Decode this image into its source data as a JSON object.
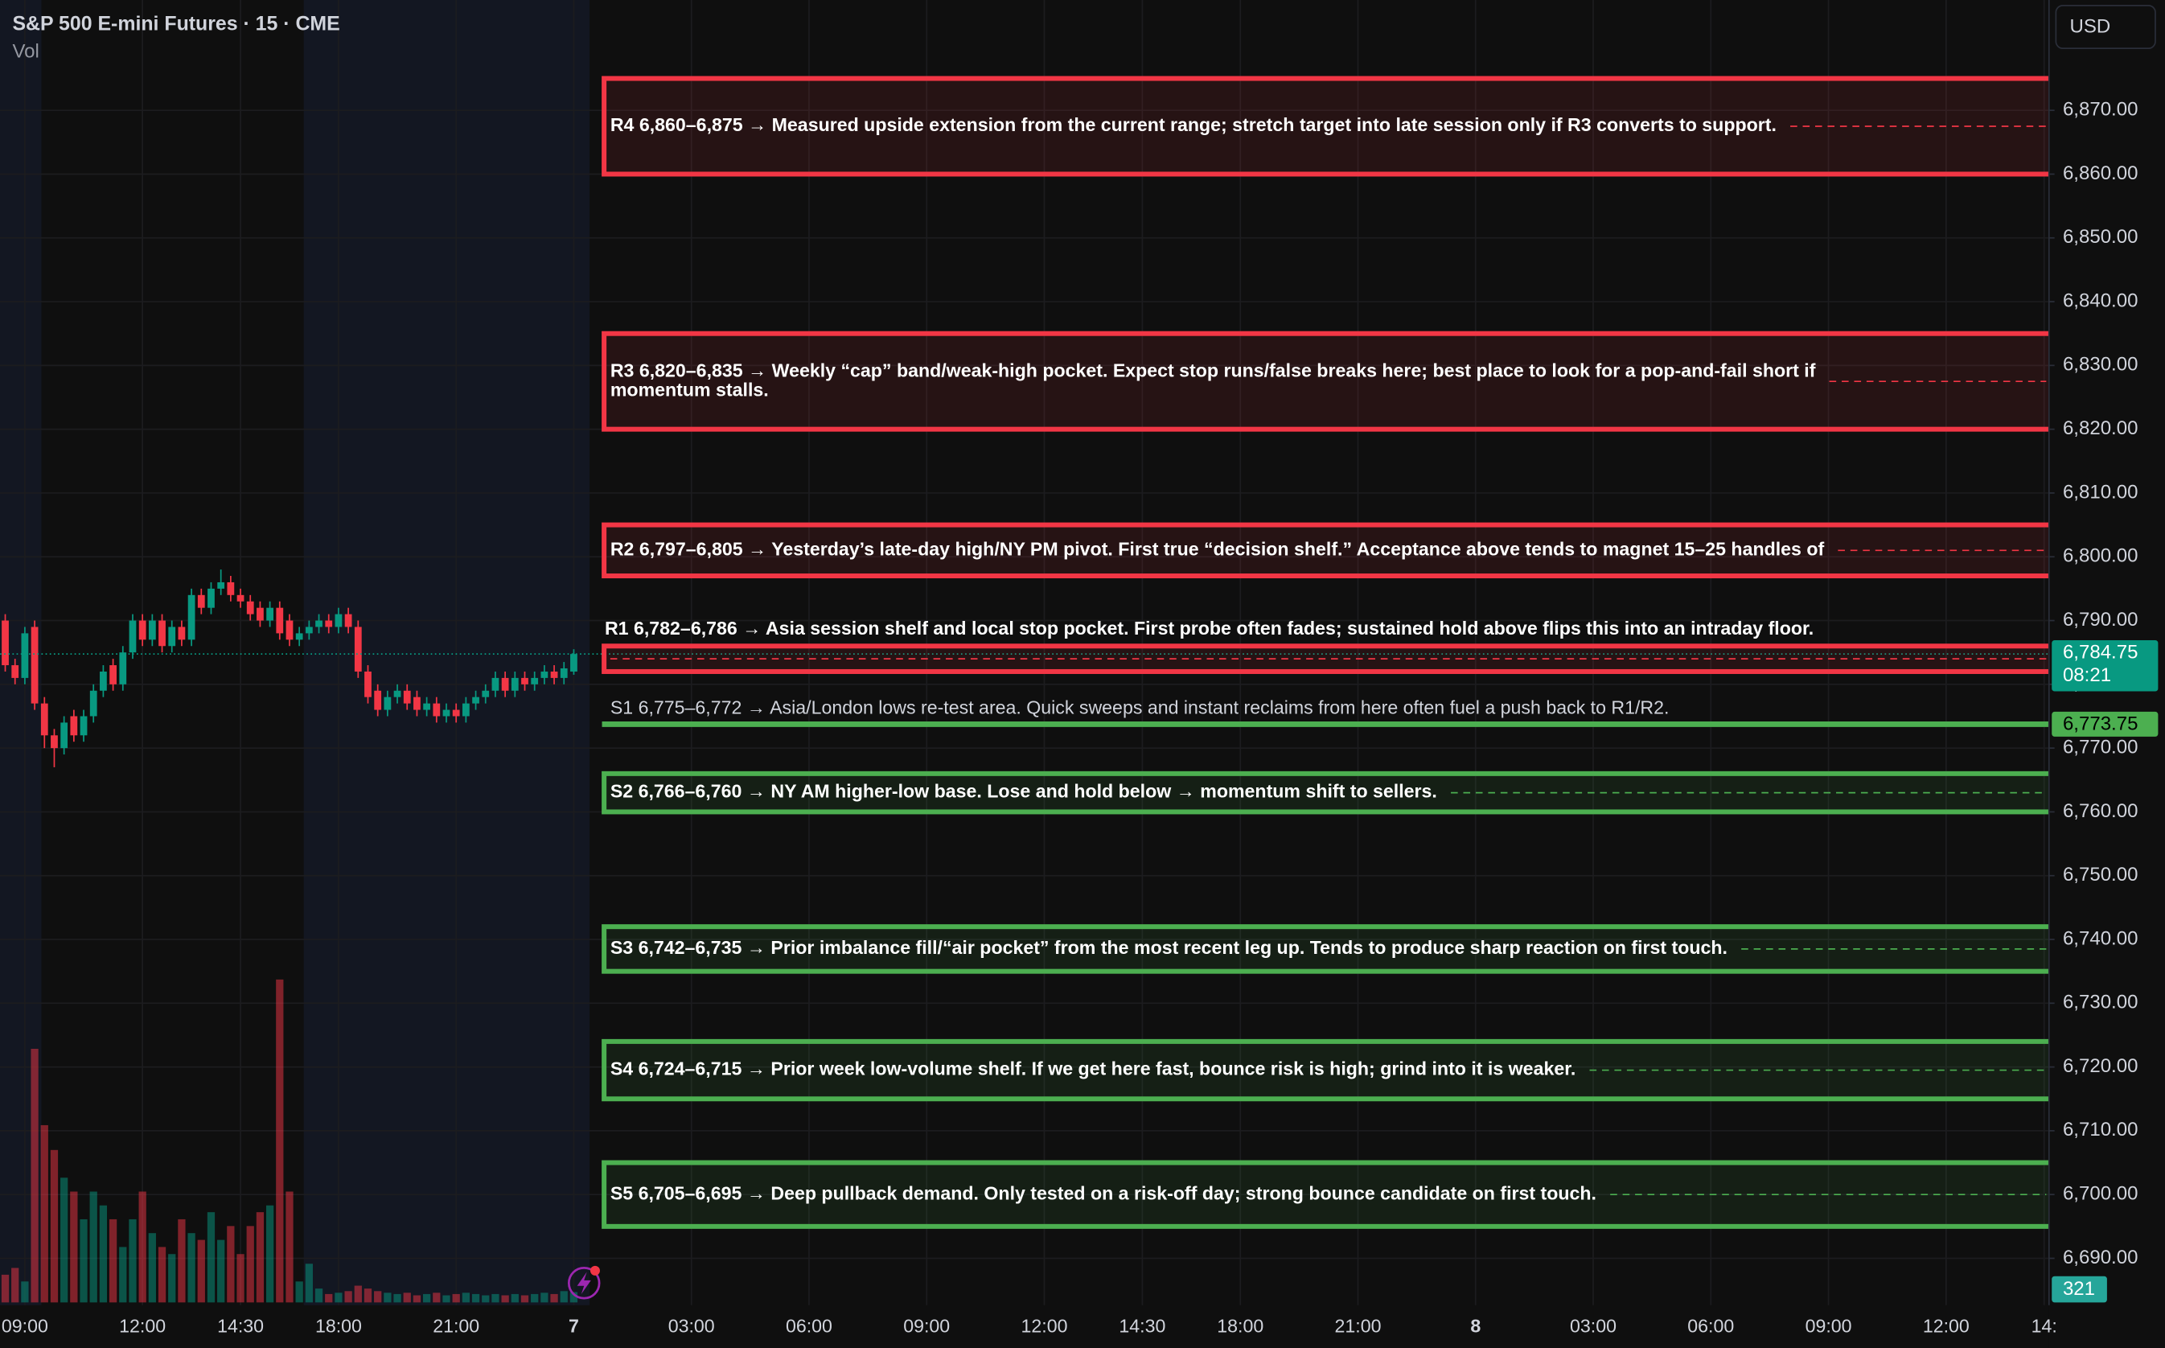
{
  "chart_data": {
    "type": "candlestick",
    "title": "S&P 500 E-mini Futures · 15 · CME",
    "volume_label": "Vol",
    "currency": "USD",
    "up_color": "#089981",
    "down_color": "#f23645",
    "open": [
      6790,
      6783,
      6781,
      6789,
      6777,
      6772,
      6770,
      6775,
      6772,
      6775,
      6779,
      6783,
      6780,
      6785,
      6790,
      6787,
      6790,
      6786,
      6789,
      6787,
      6794,
      6792,
      6795,
      6796,
      6794,
      6793,
      6792,
      6790,
      6792,
      6790,
      6787,
      6788,
      6789,
      6790,
      6789,
      6791,
      6789,
      6782,
      6779,
      6776,
      6778,
      6779,
      6778,
      6776,
      6777,
      6775,
      6776,
      6775,
      6777,
      6778,
      6779,
      6781,
      6779,
      6781,
      6780,
      6781,
      6782,
      6781,
      6782
    ],
    "high": [
      6791,
      6784,
      6789,
      6790,
      6778,
      6773,
      6775,
      6776,
      6776,
      6780,
      6783,
      6784,
      6786,
      6791,
      6791,
      6791,
      6791,
      6790,
      6790,
      6795,
      6795,
      6796,
      6798,
      6797,
      6795,
      6794,
      6793,
      6793,
      6793,
      6791,
      6789,
      6790,
      6791,
      6791,
      6792,
      6792,
      6790,
      6783,
      6780,
      6779,
      6780,
      6780,
      6779,
      6778,
      6778,
      6777,
      6777,
      6778,
      6779,
      6780,
      6782,
      6782,
      6782,
      6782,
      6782,
      6783,
      6783,
      6783.5,
      6785.5
    ],
    "low": [
      6782,
      6780,
      6780,
      6776,
      6770,
      6767,
      6769,
      6771,
      6771,
      6774,
      6778,
      6779,
      6779,
      6784,
      6786,
      6786,
      6785,
      6785,
      6786,
      6786,
      6791,
      6791,
      6794,
      6793,
      6792,
      6790,
      6789,
      6789,
      6787,
      6786,
      6786,
      6787,
      6788,
      6788,
      6788,
      6788,
      6781,
      6777,
      6775,
      6775,
      6777,
      6776,
      6775,
      6775,
      6774,
      6774,
      6774,
      6774,
      6776,
      6777,
      6778,
      6778,
      6778,
      6779,
      6779,
      6780,
      6780,
      6780,
      6781.5
    ],
    "close": [
      6783,
      6781,
      6788,
      6777,
      6772,
      6770,
      6774,
      6772,
      6775,
      6779,
      6782,
      6780,
      6785,
      6790,
      6787,
      6790,
      6786,
      6789,
      6787,
      6794,
      6792,
      6795,
      6796,
      6794,
      6793,
      6791,
      6790,
      6792,
      6788,
      6787,
      6788,
      6789,
      6790,
      6789,
      6791,
      6789,
      6782,
      6778,
      6776,
      6778,
      6779,
      6777,
      6776,
      6777,
      6775,
      6776,
      6775,
      6777,
      6778,
      6779,
      6781,
      6779,
      6781,
      6780,
      6781,
      6782,
      6781,
      6782.5,
      6784.75
    ],
    "volume": [
      860,
      1070,
      650,
      7870,
      5500,
      4730,
      3870,
      3440,
      2580,
      3440,
      3010,
      2580,
      1720,
      2580,
      3440,
      2150,
      1720,
      1500,
      2580,
      2150,
      1940,
      2800,
      1940,
      2370,
      1500,
      2370,
      2800,
      3010,
      10020,
      3440,
      650,
      1200,
      430,
      260,
      300,
      350,
      520,
      430,
      350,
      300,
      260,
      300,
      220,
      260,
      300,
      220,
      260,
      300,
      260,
      220,
      260,
      220,
      260,
      220,
      260,
      300,
      260,
      350,
      321
    ],
    "volume_ylim": [
      0,
      12000
    ],
    "last_price_label": "6,784.75",
    "countdown": "08:21",
    "xlim": [
      -0.535,
      208.5
    ],
    "xticks": [
      {
        "value": 2,
        "label": "09:00"
      },
      {
        "value": 14,
        "label": "12:00"
      },
      {
        "value": 24,
        "label": "14:30"
      },
      {
        "value": 34,
        "label": "18:00"
      },
      {
        "value": 46,
        "label": "21:00"
      },
      {
        "value": 58,
        "label": "7"
      },
      {
        "value": 70,
        "label": "03:00"
      },
      {
        "value": 82,
        "label": "06:00"
      },
      {
        "value": 94,
        "label": "09:00"
      },
      {
        "value": 106,
        "label": "12:00"
      },
      {
        "value": 116,
        "label": "14:30"
      },
      {
        "value": 126,
        "label": "18:00"
      },
      {
        "value": 138,
        "label": "21:00"
      },
      {
        "value": 150,
        "label": "8"
      },
      {
        "value": 162,
        "label": "03:00"
      },
      {
        "value": 174,
        "label": "06:00"
      },
      {
        "value": 186,
        "label": "09:00"
      },
      {
        "value": 198,
        "label": "12:00"
      },
      {
        "value": 208,
        "label": "14:"
      }
    ],
    "ylim": [
      6682.65,
      6887.3
    ],
    "yticks": [
      {
        "value": 6870,
        "label": "6,870.00"
      },
      {
        "value": 6860,
        "label": "6,860.00"
      },
      {
        "value": 6850,
        "label": "6,850.00"
      },
      {
        "value": 6840,
        "label": "6,840.00"
      },
      {
        "value": 6830,
        "label": "6,830.00"
      },
      {
        "value": 6820,
        "label": "6,820.00"
      },
      {
        "value": 6810,
        "label": "6,810.00"
      },
      {
        "value": 6800,
        "label": "6,800.00"
      },
      {
        "value": 6790,
        "label": "6,790.00"
      },
      {
        "value": 6780,
        "label": "6,780.00"
      },
      {
        "value": 6770,
        "label": "6,770.00"
      },
      {
        "value": 6760,
        "label": "6,760.00"
      },
      {
        "value": 6750,
        "label": "6,750.00"
      },
      {
        "value": 6740,
        "label": "6,740.00"
      },
      {
        "value": 6730,
        "label": "6,730.00"
      },
      {
        "value": 6720,
        "label": "6,720.00"
      },
      {
        "value": 6710,
        "label": "6,710.00"
      },
      {
        "value": 6700,
        "label": "6,700.00"
      },
      {
        "value": 6690,
        "label": "6,690.00"
      }
    ],
    "grid": true,
    "zones": [
      {
        "high": 6875,
        "low": 6860,
        "color": "#f23645",
        "lines": [
          "R4 6,860–6,875 → Measured upside extension from the current range; stretch target into late session only if R3 converts to support."
        ]
      },
      {
        "high": 6835,
        "low": 6820,
        "color": "#f23645",
        "lines": [
          "R3 6,820–6,835 → Weekly “cap” band/weak-high pocket. Expect stop runs/false breaks here; best place to look for a pop-and-fail short if",
          "momentum stalls."
        ]
      },
      {
        "high": 6805,
        "low": 6797,
        "color": "#f23645",
        "lines": [
          "R2 6,797–6,805 → Yesterday’s late-day high/NY PM pivot. First true “decision shelf.” Acceptance above tends to magnet 15–25 handles of"
        ]
      },
      {
        "high": 6786,
        "low": 6782,
        "color": "#f23645",
        "lines": [
          "R1 6,782–6,786 → Asia session shelf and local stop pocket. First probe often fades; sustained hold above flips this into an intraday floor."
        ]
      },
      {
        "line": {
          "value": 6773.75,
          "label": "6,773.75"
        },
        "color": "#4caf50",
        "lines": [
          "S1 6,775–6,772 → Asia/London lows re-test area. Quick sweeps and instant reclaims from here often fuel a push back to R1/R2."
        ]
      },
      {
        "high": 6766,
        "low": 6760,
        "color": "#4caf50",
        "lines": [
          "S2 6,766–6,760 → NY AM higher-low base. Lose and hold below → momentum shift to sellers."
        ]
      },
      {
        "high": 6742,
        "low": 6735,
        "color": "#4caf50",
        "lines": [
          "S3 6,742–6,735 → Prior imbalance fill/“air pocket” from the most recent leg up. Tends to produce sharp reaction on first touch."
        ]
      },
      {
        "high": 6724,
        "low": 6715,
        "color": "#4caf50",
        "lines": [
          "S4 6,724–6,715 → Prior week low-volume shelf. If we get here fast, bounce risk is high; grind into it is weaker."
        ]
      },
      {
        "high": 6705,
        "low": 6695,
        "color": "#4caf50",
        "lines": [
          "S5 6,705–6,695 → Deep pullback demand. Only tested on a risk-off day; strong bounce candidate on first touch."
        ]
      }
    ]
  }
}
